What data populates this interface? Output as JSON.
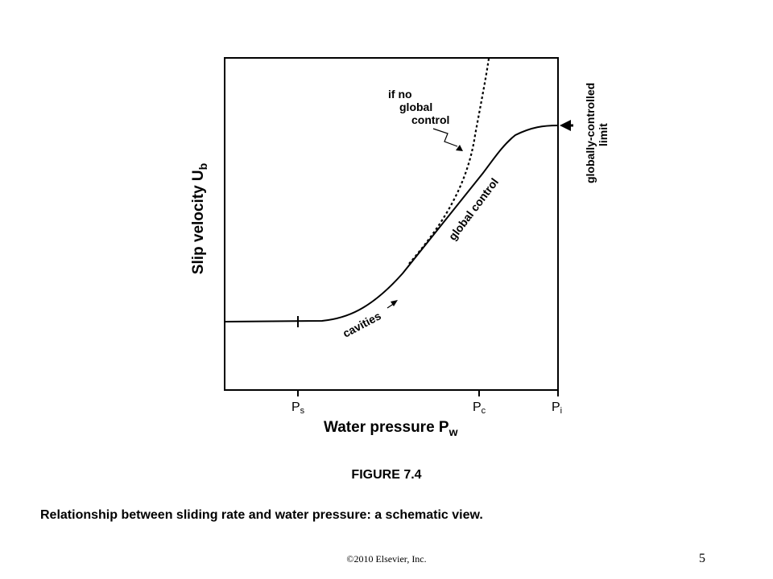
{
  "axes": {
    "ylabel_main": "Slip velocity U",
    "ylabel_sub": "b",
    "xlabel_main": "Water pressure P",
    "xlabel_sub": "w"
  },
  "ticks": [
    {
      "main": "P",
      "sub": "s",
      "x": 0.26
    },
    {
      "main": "P",
      "sub": "c",
      "x": 0.87
    },
    {
      "main": "P",
      "sub": "i",
      "x": 1.0
    }
  ],
  "annotations": {
    "if_no_line1": "if no",
    "if_no_line2": "global",
    "if_no_line3": "control",
    "global_control": "global control",
    "cavities": "cavities",
    "limit_line1": "globally-controlled",
    "limit_line2": "limit"
  },
  "figure_label": "FIGURE 7.4",
  "caption": "Relationship between sliding rate and water pressure: a schematic view.",
  "copyright": "©2010 Elsevier,  Inc.",
  "page_number": "5"
}
